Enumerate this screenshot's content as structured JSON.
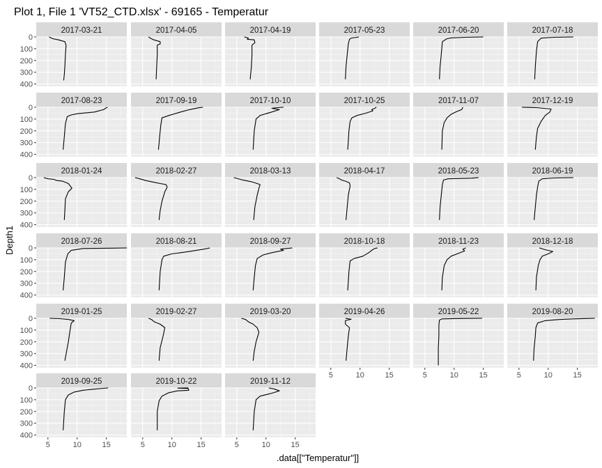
{
  "chart_data": {
    "type": "line",
    "title": "Plot 1, File 1 'VT52_CTD.xlsx' - 69165  -  Temperatur",
    "xlabel": ".data[[\"Temperatur\"]]",
    "ylabel": "Depth1",
    "x_ticks": [
      5,
      10,
      15
    ],
    "y_ticks": [
      0,
      100,
      200,
      300,
      400
    ],
    "xlim": [
      3,
      18.5
    ],
    "ylim": [
      0,
      420
    ],
    "y_reversed": true,
    "facets": [
      {
        "label": "2017-03-21",
        "points": [
          [
            5.2,
            0
          ],
          [
            5.8,
            15
          ],
          [
            6.8,
            25
          ],
          [
            7.9,
            40
          ],
          [
            8.1,
            70
          ],
          [
            8.0,
            150
          ],
          [
            7.9,
            250
          ],
          [
            7.8,
            320
          ],
          [
            7.7,
            370
          ]
        ]
      },
      {
        "label": "2017-04-05",
        "points": [
          [
            6.0,
            0
          ],
          [
            6.3,
            10
          ],
          [
            6.9,
            25
          ],
          [
            8.0,
            40
          ],
          [
            8.0,
            60
          ],
          [
            7.5,
            70
          ],
          [
            7.5,
            150
          ],
          [
            7.4,
            250
          ],
          [
            7.3,
            360
          ]
        ]
      },
      {
        "label": "2017-04-19",
        "points": [
          [
            6.3,
            0
          ],
          [
            7.0,
            10
          ],
          [
            6.8,
            20
          ],
          [
            8.0,
            25
          ],
          [
            8.1,
            50
          ],
          [
            7.6,
            70
          ],
          [
            7.6,
            160
          ],
          [
            7.5,
            260
          ],
          [
            7.3,
            360
          ]
        ]
      },
      {
        "label": "2017-05-23",
        "points": [
          [
            9.8,
            0
          ],
          [
            9.5,
            3
          ],
          [
            8.5,
            10
          ],
          [
            8.2,
            20
          ],
          [
            8.0,
            60
          ],
          [
            7.8,
            150
          ],
          [
            7.6,
            250
          ],
          [
            7.5,
            360
          ]
        ]
      },
      {
        "label": "2017-06-20",
        "points": [
          [
            15.0,
            0
          ],
          [
            12.0,
            3
          ],
          [
            9.5,
            8
          ],
          [
            8.8,
            15
          ],
          [
            8.0,
            40
          ],
          [
            7.8,
            150
          ],
          [
            7.6,
            250
          ],
          [
            7.5,
            360
          ]
        ]
      },
      {
        "label": "2017-07-18",
        "points": [
          [
            14.3,
            0
          ],
          [
            11.0,
            3
          ],
          [
            8.8,
            10
          ],
          [
            8.2,
            40
          ],
          [
            8.0,
            120
          ],
          [
            7.8,
            250
          ],
          [
            7.7,
            360
          ]
        ]
      },
      {
        "label": "2017-08-23",
        "points": [
          [
            15.2,
            0
          ],
          [
            15.0,
            5
          ],
          [
            14.5,
            20
          ],
          [
            13.0,
            40
          ],
          [
            10.0,
            55
          ],
          [
            9.0,
            65
          ],
          [
            8.3,
            80
          ],
          [
            8.0,
            140
          ],
          [
            7.8,
            250
          ],
          [
            7.6,
            360
          ]
        ]
      },
      {
        "label": "2017-09-19",
        "points": [
          [
            15.3,
            0
          ],
          [
            14.5,
            5
          ],
          [
            13.0,
            20
          ],
          [
            11.5,
            40
          ],
          [
            9.5,
            70
          ],
          [
            8.3,
            90
          ],
          [
            8.1,
            150
          ],
          [
            7.9,
            250
          ],
          [
            7.7,
            360
          ]
        ]
      },
      {
        "label": "2017-10-10",
        "points": [
          [
            13.0,
            0
          ],
          [
            12.0,
            3
          ],
          [
            11.0,
            8
          ],
          [
            12.3,
            20
          ],
          [
            11.0,
            40
          ],
          [
            9.0,
            70
          ],
          [
            8.3,
            100
          ],
          [
            8.0,
            200
          ],
          [
            7.8,
            360
          ]
        ]
      },
      {
        "label": "2017-10-25",
        "points": [
          [
            12.8,
            0
          ],
          [
            12.5,
            10
          ],
          [
            12.0,
            20
          ],
          [
            12.2,
            30
          ],
          [
            11.0,
            50
          ],
          [
            9.5,
            70
          ],
          [
            8.6,
            90
          ],
          [
            8.3,
            120
          ],
          [
            8.1,
            200
          ],
          [
            7.9,
            360
          ]
        ]
      },
      {
        "label": "2017-11-07",
        "points": [
          [
            11.5,
            0
          ],
          [
            11.3,
            20
          ],
          [
            10.3,
            40
          ],
          [
            9.5,
            60
          ],
          [
            8.8,
            90
          ],
          [
            8.3,
            130
          ],
          [
            8.0,
            200
          ],
          [
            7.9,
            360
          ]
        ]
      },
      {
        "label": "2017-12-19",
        "points": [
          [
            5.5,
            0
          ],
          [
            8.0,
            3
          ],
          [
            10.5,
            15
          ],
          [
            10.3,
            40
          ],
          [
            9.5,
            70
          ],
          [
            8.8,
            120
          ],
          [
            8.2,
            180
          ],
          [
            8.0,
            250
          ],
          [
            7.8,
            360
          ]
        ]
      },
      {
        "label": "2018-01-24",
        "points": [
          [
            4.3,
            0
          ],
          [
            5.0,
            10
          ],
          [
            6.0,
            15
          ],
          [
            6.5,
            25
          ],
          [
            7.5,
            30
          ],
          [
            8.5,
            50
          ],
          [
            9.1,
            90
          ],
          [
            8.5,
            120
          ],
          [
            8.0,
            180
          ],
          [
            7.9,
            280
          ],
          [
            7.8,
            360
          ]
        ]
      },
      {
        "label": "2018-02-27",
        "points": [
          [
            3.7,
            0
          ],
          [
            4.5,
            10
          ],
          [
            5.5,
            25
          ],
          [
            7.0,
            40
          ],
          [
            8.0,
            50
          ],
          [
            9.0,
            60
          ],
          [
            9.2,
            80
          ],
          [
            8.8,
            120
          ],
          [
            8.3,
            200
          ],
          [
            8.0,
            280
          ],
          [
            7.8,
            360
          ]
        ]
      },
      {
        "label": "2018-03-13",
        "points": [
          [
            4.5,
            0
          ],
          [
            6.0,
            20
          ],
          [
            7.5,
            35
          ],
          [
            8.5,
            50
          ],
          [
            9.0,
            60
          ],
          [
            8.8,
            90
          ],
          [
            8.5,
            150
          ],
          [
            8.1,
            250
          ],
          [
            7.9,
            360
          ]
        ]
      },
      {
        "label": "2018-04-17",
        "points": [
          [
            6.0,
            0
          ],
          [
            6.5,
            10
          ],
          [
            6.8,
            20
          ],
          [
            7.5,
            30
          ],
          [
            8.2,
            45
          ],
          [
            8.3,
            70
          ],
          [
            8.0,
            150
          ],
          [
            7.8,
            250
          ],
          [
            7.6,
            360
          ]
        ]
      },
      {
        "label": "2018-05-23",
        "points": [
          [
            14.2,
            0
          ],
          [
            13.0,
            5
          ],
          [
            9.0,
            10
          ],
          [
            8.2,
            20
          ],
          [
            8.0,
            60
          ],
          [
            7.8,
            150
          ],
          [
            7.6,
            250
          ],
          [
            7.5,
            360
          ]
        ]
      },
      {
        "label": "2018-06-19",
        "points": [
          [
            14.3,
            0
          ],
          [
            11.0,
            3
          ],
          [
            9.0,
            10
          ],
          [
            8.4,
            30
          ],
          [
            8.2,
            80
          ],
          [
            8.0,
            150
          ],
          [
            7.8,
            250
          ],
          [
            7.6,
            360
          ]
        ]
      },
      {
        "label": "2018-07-26",
        "points": [
          [
            18.5,
            0
          ],
          [
            16.0,
            2
          ],
          [
            11.0,
            5
          ],
          [
            9.0,
            20
          ],
          [
            8.4,
            50
          ],
          [
            8.0,
            120
          ],
          [
            7.8,
            250
          ],
          [
            7.6,
            360
          ]
        ]
      },
      {
        "label": "2018-08-21",
        "points": [
          [
            16.5,
            0
          ],
          [
            15.5,
            10
          ],
          [
            13.0,
            30
          ],
          [
            10.0,
            50
          ],
          [
            8.6,
            70
          ],
          [
            8.3,
            100
          ],
          [
            8.0,
            200
          ],
          [
            7.8,
            360
          ]
        ]
      },
      {
        "label": "2018-09-27",
        "points": [
          [
            14.5,
            0
          ],
          [
            13.5,
            5
          ],
          [
            12.5,
            10
          ],
          [
            13.0,
            20
          ],
          [
            11.0,
            40
          ],
          [
            9.5,
            60
          ],
          [
            8.5,
            90
          ],
          [
            8.2,
            150
          ],
          [
            8.0,
            250
          ],
          [
            7.8,
            360
          ]
        ]
      },
      {
        "label": "2018-10-18",
        "points": [
          [
            13.0,
            0
          ],
          [
            12.5,
            5
          ],
          [
            12.0,
            20
          ],
          [
            11.5,
            40
          ],
          [
            10.5,
            70
          ],
          [
            9.0,
            90
          ],
          [
            8.3,
            110
          ],
          [
            8.1,
            200
          ],
          [
            7.9,
            360
          ]
        ]
      },
      {
        "label": "2018-11-23",
        "points": [
          [
            12.0,
            0
          ],
          [
            11.5,
            10
          ],
          [
            11.8,
            25
          ],
          [
            10.8,
            45
          ],
          [
            9.5,
            70
          ],
          [
            8.8,
            100
          ],
          [
            8.3,
            150
          ],
          [
            8.0,
            250
          ],
          [
            7.9,
            360
          ]
        ]
      },
      {
        "label": "2018-12-18",
        "points": [
          [
            8.5,
            0
          ],
          [
            9.5,
            15
          ],
          [
            10.8,
            30
          ],
          [
            10.0,
            50
          ],
          [
            9.0,
            70
          ],
          [
            8.6,
            100
          ],
          [
            8.3,
            150
          ],
          [
            8.0,
            250
          ],
          [
            7.9,
            360
          ]
        ]
      },
      {
        "label": "2019-01-25",
        "points": [
          [
            5.3,
            0
          ],
          [
            7.0,
            3
          ],
          [
            8.5,
            10
          ],
          [
            9.5,
            20
          ],
          [
            9.0,
            40
          ],
          [
            8.8,
            100
          ],
          [
            8.5,
            200
          ],
          [
            8.2,
            280
          ],
          [
            7.9,
            360
          ]
        ]
      },
      {
        "label": "2019-02-27",
        "points": [
          [
            6.0,
            0
          ],
          [
            6.5,
            10
          ],
          [
            7.0,
            30
          ],
          [
            8.0,
            50
          ],
          [
            8.8,
            80
          ],
          [
            8.5,
            150
          ],
          [
            8.0,
            250
          ],
          [
            7.8,
            360
          ]
        ]
      },
      {
        "label": "2019-03-20",
        "points": [
          [
            5.8,
            0
          ],
          [
            6.5,
            10
          ],
          [
            7.0,
            30
          ],
          [
            7.8,
            50
          ],
          [
            8.5,
            80
          ],
          [
            8.8,
            120
          ],
          [
            8.3,
            200
          ],
          [
            8.0,
            280
          ],
          [
            7.8,
            360
          ]
        ]
      },
      {
        "label": "2019-04-26",
        "points": [
          [
            7.5,
            0
          ],
          [
            8.5,
            8
          ],
          [
            7.5,
            20
          ],
          [
            7.5,
            50
          ],
          [
            8.2,
            80
          ],
          [
            8.0,
            150
          ],
          [
            7.8,
            250
          ],
          [
            7.6,
            360
          ]
        ]
      },
      {
        "label": "2019-05-22",
        "points": [
          [
            14.8,
            0
          ],
          [
            11.0,
            2
          ],
          [
            8.0,
            5
          ],
          [
            7.5,
            15
          ],
          [
            7.4,
            60
          ],
          [
            7.4,
            150
          ],
          [
            7.3,
            250
          ],
          [
            7.3,
            400
          ]
        ]
      },
      {
        "label": "2019-08-20",
        "points": [
          [
            18.0,
            0
          ],
          [
            16.5,
            2
          ],
          [
            14.5,
            5
          ],
          [
            12.0,
            10
          ],
          [
            9.5,
            20
          ],
          [
            8.2,
            40
          ],
          [
            7.9,
            80
          ],
          [
            7.8,
            150
          ],
          [
            7.6,
            250
          ],
          [
            7.5,
            360
          ]
        ]
      },
      {
        "label": "2019-09-25",
        "points": [
          [
            15.3,
            0
          ],
          [
            14.5,
            3
          ],
          [
            13.0,
            10
          ],
          [
            11.0,
            20
          ],
          [
            9.5,
            35
          ],
          [
            8.5,
            60
          ],
          [
            8.0,
            100
          ],
          [
            7.8,
            200
          ],
          [
            7.6,
            360
          ]
        ]
      },
      {
        "label": "2019-10-22",
        "points": [
          [
            12.8,
            0
          ],
          [
            11.0,
            2
          ],
          [
            12.8,
            5
          ],
          [
            12.9,
            20
          ],
          [
            11.0,
            25
          ],
          [
            9.5,
            40
          ],
          [
            8.3,
            70
          ],
          [
            7.8,
            110
          ],
          [
            7.5,
            200
          ],
          [
            7.5,
            360
          ]
        ]
      },
      {
        "label": "2019-11-12",
        "points": [
          [
            10.5,
            0
          ],
          [
            11.5,
            10
          ],
          [
            12.3,
            25
          ],
          [
            11.0,
            45
          ],
          [
            9.0,
            70
          ],
          [
            8.3,
            100
          ],
          [
            8.0,
            200
          ],
          [
            7.8,
            360
          ]
        ]
      }
    ]
  }
}
